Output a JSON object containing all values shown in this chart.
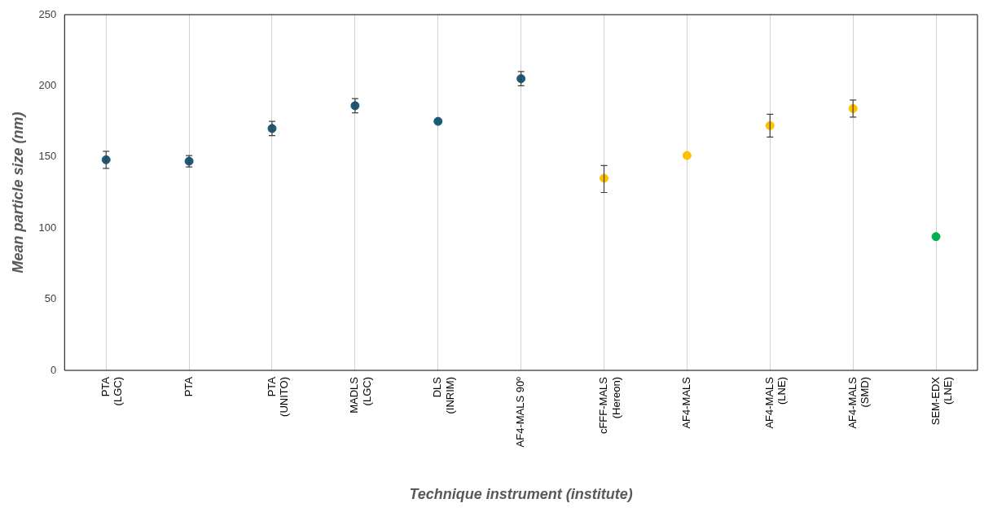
{
  "chart_data": {
    "type": "scatter",
    "xlabel": "Technique instrument (institute)",
    "ylabel": "Mean particle size (nm)",
    "categories": [
      "PTA (LGC)",
      "PTA",
      "PTA (UNITO)",
      "MADLS (LGC)",
      "DLS (INRIM)",
      "AF4-MALS 90º",
      "cFFF-MALS (Hereon)",
      "AF4-MALS",
      "AF4-MALS (LNE)",
      "AF4-MALS (SMD)",
      "SEM-EDX (LNE)"
    ],
    "values": [
      148,
      147,
      170,
      186,
      175,
      205,
      135,
      151,
      172,
      184,
      94
    ],
    "colors": [
      "#1b5a7a",
      "#1b5a7a",
      "#1b5a7a",
      "#1b5a7a",
      "#1b5a7a",
      "#1b5a7a",
      "#ffc000",
      "#ffc000",
      "#ffc000",
      "#ffc000",
      "#00b050"
    ],
    "errors": [
      6,
      4,
      5,
      5,
      null,
      5,
      [
        125,
        144
      ],
      null,
      [
        164,
        180
      ],
      [
        178,
        190
      ],
      null
    ],
    "ylim": [
      0,
      250
    ],
    "yticks": [
      0,
      50,
      100,
      150,
      200,
      250
    ],
    "grid": "x",
    "marker": "circle",
    "legend": false
  }
}
